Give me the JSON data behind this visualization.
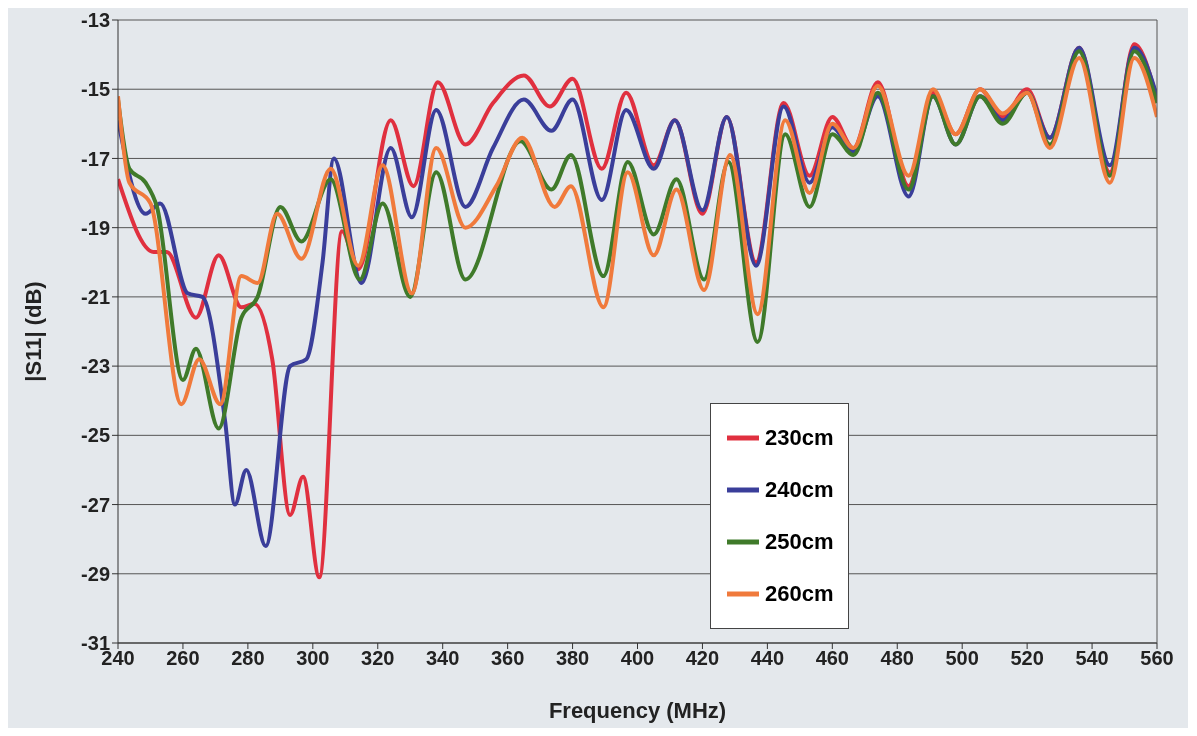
{
  "chart_data": {
    "type": "line",
    "xlabel": "Frequency (MHz)",
    "ylabel": "|S11| (dB)",
    "xlim": [
      240,
      560
    ],
    "xticks": [
      240,
      260,
      280,
      300,
      320,
      340,
      360,
      380,
      400,
      420,
      440,
      460,
      480,
      500,
      520,
      540,
      560
    ],
    "ylim": [
      -31,
      -13
    ],
    "yticks": [
      -31,
      -29,
      -27,
      -25,
      -23,
      -21,
      -19,
      -17,
      -15,
      -13
    ],
    "grid": "y",
    "legend": "bottom right",
    "marker": "none",
    "line_style": "solid",
    "series": [
      {
        "name": "230cm",
        "color": "#e0303f",
        "x": [
          240,
          251,
          255,
          264,
          271,
          278,
          282,
          287.5,
          293,
          297,
          302,
          309,
          314,
          324,
          331,
          338.5,
          347,
          355.5,
          365,
          373,
          380,
          389,
          396.5,
          405,
          411.5,
          420,
          427.5,
          436.5,
          445,
          453,
          460,
          466.5,
          474,
          483.5,
          491,
          498,
          505.5,
          512.5,
          520,
          527,
          536,
          545.5,
          553,
          560
        ],
        "values": [
          -17.6,
          -19.7,
          -19.7,
          -21.6,
          -19.8,
          -21.3,
          -21.2,
          -22.8,
          -27.3,
          -26.2,
          -29.1,
          -19.1,
          -20.2,
          -15.9,
          -17.8,
          -14.8,
          -16.6,
          -15.4,
          -14.6,
          -15.5,
          -14.7,
          -17.3,
          -15.1,
          -17.2,
          -15.9,
          -18.6,
          -15.8,
          -20,
          -15.4,
          -17.5,
          -15.8,
          -16.7,
          -14.8,
          -17.8,
          -15.1,
          -16.3,
          -15,
          -15.8,
          -15,
          -16.4,
          -13.8,
          -17.4,
          -13.7,
          -15.3
        ]
      },
      {
        "name": "240cm",
        "color": "#3a3e9a",
        "x": [
          240,
          248.5,
          253,
          261.5,
          266,
          273,
          276,
          279.5,
          285.5,
          293,
          298,
          303,
          306.5,
          315,
          324,
          330.5,
          338,
          347,
          355.5,
          365,
          373.5,
          380,
          389,
          396.5,
          405,
          411.5,
          420,
          427.5,
          436.5,
          445,
          453,
          460,
          466.5,
          474,
          483.5,
          491,
          498,
          505.5,
          512.5,
          520,
          527,
          536,
          545.5,
          553,
          560
        ],
        "values": [
          -15.9,
          -18.6,
          -18.3,
          -20.9,
          -21,
          -24.6,
          -27,
          -26,
          -28.2,
          -23,
          -22.8,
          -20,
          -17,
          -20.6,
          -16.7,
          -18.7,
          -15.6,
          -18.4,
          -16.7,
          -15.3,
          -16.2,
          -15.3,
          -18.2,
          -15.6,
          -17.3,
          -15.9,
          -18.5,
          -15.8,
          -20.1,
          -15.5,
          -17.7,
          -16.1,
          -16.8,
          -15.2,
          -18.1,
          -15.2,
          -16.6,
          -15.2,
          -15.9,
          -15.1,
          -16.4,
          -13.8,
          -17.2,
          -13.8,
          -15.2
        ]
      },
      {
        "name": "250cm",
        "color": "#3f7a2a",
        "x": [
          240,
          243.5,
          248.5,
          252,
          260,
          264,
          271,
          278,
          283,
          290,
          296.5,
          305.5,
          314.5,
          321.5,
          330,
          338,
          347,
          364,
          373.5,
          379.5,
          389.5,
          397,
          405,
          412,
          420.5,
          428,
          437,
          445.5,
          453,
          460,
          466.5,
          474,
          483.5,
          491,
          498,
          505.5,
          512.5,
          520,
          527,
          536,
          545.5,
          553,
          560
        ],
        "values": [
          -15.3,
          -17.3,
          -17.7,
          -18.4,
          -23.4,
          -22.5,
          -24.8,
          -21.6,
          -21,
          -18.4,
          -19.4,
          -17.6,
          -20.5,
          -18.3,
          -21,
          -17.4,
          -20.5,
          -16.5,
          -17.9,
          -16.9,
          -20.4,
          -17.1,
          -19.2,
          -17.6,
          -20.5,
          -17.1,
          -22.3,
          -16.3,
          -18.4,
          -16.3,
          -16.9,
          -15.1,
          -17.9,
          -15.2,
          -16.6,
          -15.2,
          -16,
          -15.1,
          -16.6,
          -13.9,
          -17.5,
          -13.9,
          -15.4
        ]
      },
      {
        "name": "260cm",
        "color": "#f07a3c",
        "x": [
          240,
          243.5,
          250,
          259.5,
          265,
          271.5,
          278,
          283,
          289,
          296.5,
          305.5,
          314,
          321.5,
          330.5,
          338,
          347,
          356.5,
          364.5,
          374.5,
          379.5,
          389.5,
          397,
          405,
          412,
          420.5,
          428.5,
          437,
          445.5,
          453,
          460,
          466.5,
          474,
          483.5,
          491,
          498,
          505.5,
          512.5,
          520,
          527,
          536,
          545.5,
          553,
          560
        ],
        "values": [
          -15.2,
          -17.7,
          -18.3,
          -24.1,
          -22.8,
          -24.1,
          -20.4,
          -20.6,
          -18.6,
          -19.9,
          -17.3,
          -20.1,
          -17.2,
          -20.9,
          -16.7,
          -19,
          -17.8,
          -16.4,
          -18.4,
          -17.8,
          -21.3,
          -17.4,
          -19.8,
          -17.9,
          -20.8,
          -16.9,
          -21.5,
          -15.9,
          -18,
          -16,
          -16.7,
          -14.9,
          -17.5,
          -15,
          -16.3,
          -15,
          -15.7,
          -15.1,
          -16.7,
          -14.1,
          -17.7,
          -14.1,
          -15.8
        ]
      }
    ]
  }
}
